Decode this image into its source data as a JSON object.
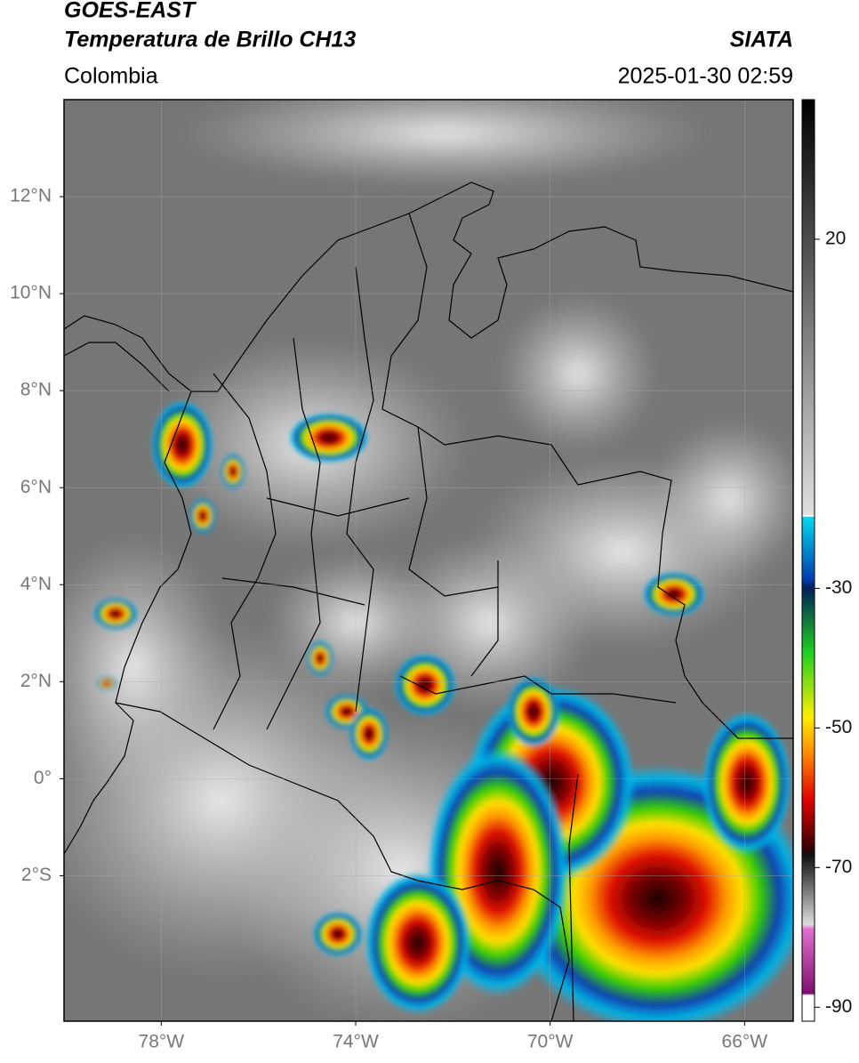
{
  "header": {
    "satellite": "GOES-EAST",
    "product": "Temperatura de Brillo CH13",
    "region": "Colombia",
    "source": "SIATA",
    "datetime": "2025-01-30 02:59"
  },
  "map": {
    "lonlim": [
      -80,
      -65
    ],
    "latlim": [
      -5,
      14
    ],
    "lonticks": [
      {
        "value": -78,
        "label": "78°W"
      },
      {
        "value": -74,
        "label": "74°W"
      },
      {
        "value": -70,
        "label": "70°W"
      },
      {
        "value": -66,
        "label": "66°W"
      }
    ],
    "latticks": [
      {
        "value": 12,
        "label": "12°N"
      },
      {
        "value": 10,
        "label": "10°N"
      },
      {
        "value": 8,
        "label": "8°N"
      },
      {
        "value": 6,
        "label": "6°N"
      },
      {
        "value": 4,
        "label": "4°N"
      },
      {
        "value": 2,
        "label": "2°N"
      },
      {
        "value": 0,
        "label": "0°"
      },
      {
        "value": -2,
        "label": "2°S"
      }
    ],
    "grid": true
  },
  "colorbar": {
    "lim": [
      -92,
      40
    ],
    "ticks": [
      20,
      -30,
      -50,
      -70,
      -90
    ]
  }
}
